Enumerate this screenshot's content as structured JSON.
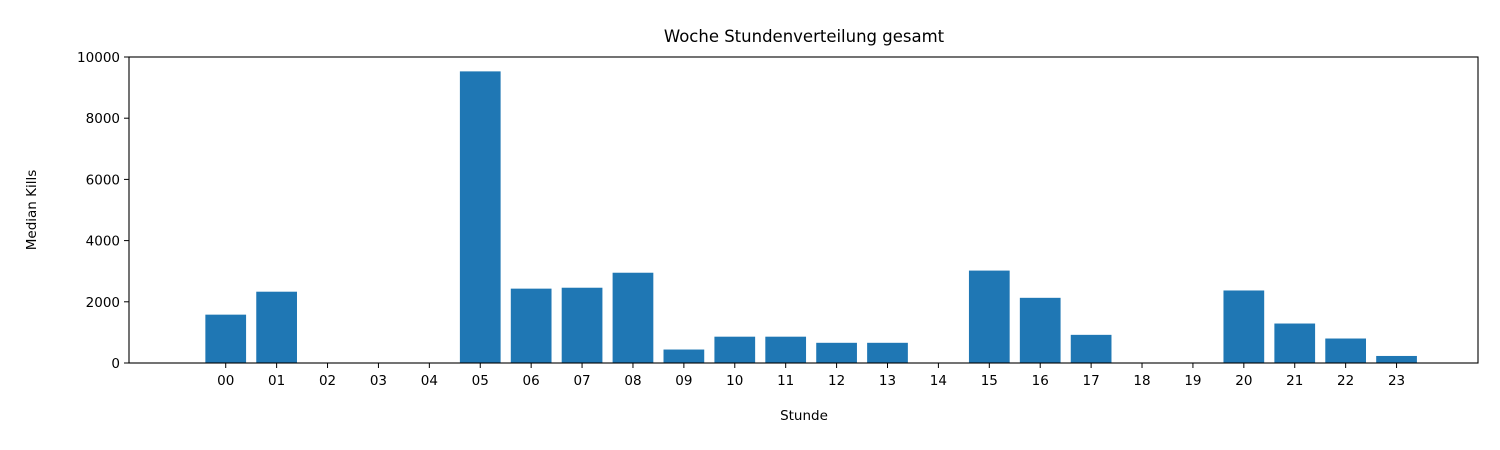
{
  "chart_data": {
    "type": "bar",
    "title": "Woche Stundenverteilung gesamt",
    "xlabel": "Stunde",
    "ylabel": "Median Kills",
    "categories": [
      "00",
      "01",
      "02",
      "03",
      "04",
      "05",
      "06",
      "07",
      "08",
      "09",
      "10",
      "11",
      "12",
      "13",
      "14",
      "15",
      "16",
      "17",
      "18",
      "19",
      "20",
      "21",
      "22",
      "23"
    ],
    "values": [
      1580,
      2330,
      0,
      0,
      0,
      9530,
      2430,
      2460,
      2950,
      440,
      860,
      860,
      660,
      660,
      0,
      3020,
      2130,
      920,
      0,
      0,
      2370,
      1290,
      800,
      230
    ],
    "ylim": [
      0,
      10000
    ],
    "yticks": [
      0,
      2000,
      4000,
      6000,
      8000,
      10000
    ],
    "bar_color": "#1f77b4",
    "grid": false,
    "legend": "none"
  }
}
